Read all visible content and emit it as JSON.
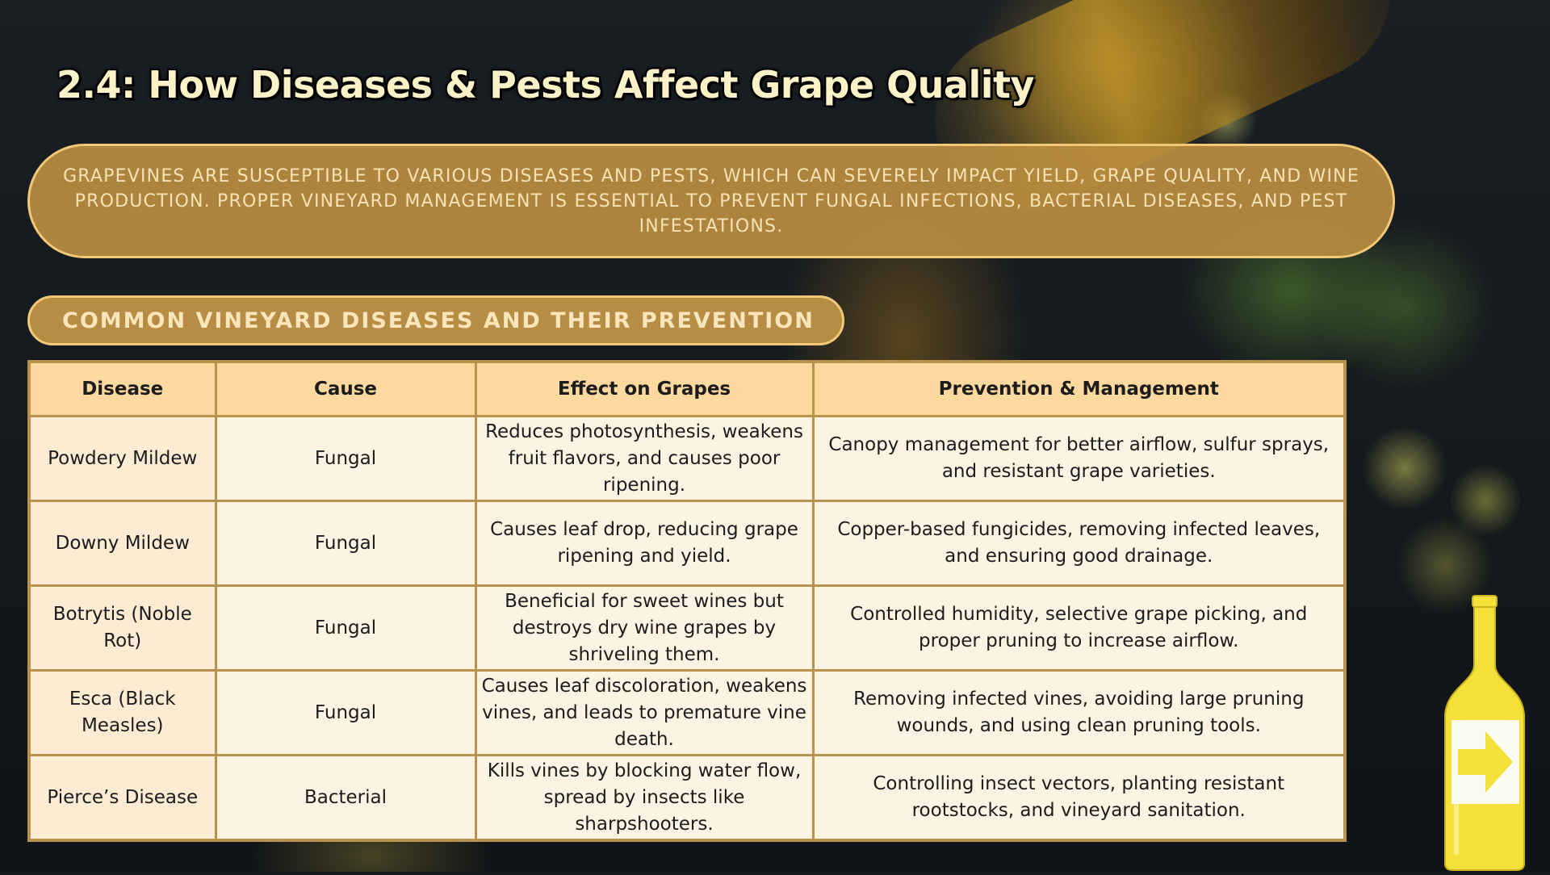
{
  "slide": {
    "title": "2.4: How Diseases & Pests Affect Grape Quality",
    "intro": "Grapevines are susceptible to various diseases and pests, which can severely impact yield, grape quality, and wine production. Proper vineyard management is essential to prevent fungal infections, bacterial diseases, and pest infestations.",
    "section_heading": "COMMON VINEYARD DISEASES AND THEIR PREVENTION"
  },
  "table": {
    "headers": [
      "Disease",
      "Cause",
      "Effect on Grapes",
      "Prevention & Management"
    ],
    "rows": [
      [
        "Powdery Mildew",
        "Fungal",
        "Reduces photosynthesis, weakens fruit flavors, and causes poor ripening.",
        "Canopy management for better airflow, sulfur sprays, and resistant grape varieties."
      ],
      [
        "Downy Mildew",
        "Fungal",
        "Causes leaf drop, reducing grape ripening and yield.",
        "Copper-based fungicides, removing infected leaves, and ensuring good drainage."
      ],
      [
        "Botrytis (Noble Rot)",
        "Fungal",
        "Beneficial for sweet wines but destroys dry wine grapes by shriveling them.",
        "Controlled humidity, selective grape picking, and proper pruning to increase airflow."
      ],
      [
        "Esca (Black Measles)",
        "Fungal",
        "Causes leaf discoloration, weakens vines, and leads to premature vine death.",
        "Removing infected vines, avoiding large pruning wounds, and using clean pruning tools."
      ],
      [
        "Pierce’s Disease",
        "Bacterial",
        "Kills vines by blocking water flow, spread by insects like sharpshooters.",
        "Controlling insect vectors, planting resistant rootstocks, and vineyard sanitation."
      ]
    ]
  },
  "nav": {
    "icon": "wine-bottle-next-arrow-icon",
    "bottle_color": "#f3e13a",
    "arrow_color": "#f3e13a"
  },
  "colors": {
    "pill_fill": "#b88c40",
    "pill_border": "#f2c878",
    "table_header": "#fdd9a0",
    "table_cell": "#fdf3e2",
    "table_border": "#b9924e",
    "title_text": "#fdf1c8"
  }
}
